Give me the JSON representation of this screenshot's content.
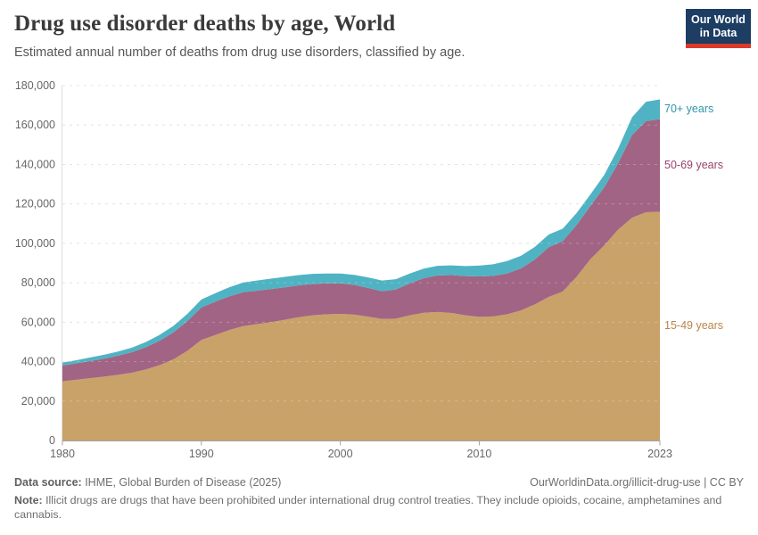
{
  "header": {
    "title": "Drug use disorder deaths by age, World",
    "subtitle": "Estimated annual number of deaths from drug use disorders, classified by age."
  },
  "logo": {
    "line1": "Our World",
    "line2": "in Data",
    "bg_color": "#1D3D63",
    "accent_color": "#D93A2B"
  },
  "footer": {
    "datasource_label": "Data source:",
    "datasource_value": " IHME, Global Burden of Disease (2025)",
    "credit": "OurWorldinData.org/illicit-drug-use | CC BY",
    "note_label": "Note:",
    "note_text": " Illicit drugs are drugs that have been prohibited under international drug control treaties. They include opioids, cocaine, amphetamines and cannabis."
  },
  "chart_data": {
    "type": "area",
    "stacked": true,
    "title": "Drug use disorder deaths by age, World",
    "xlabel": "",
    "ylabel": "",
    "xlim": [
      1980,
      2023
    ],
    "ylim": [
      0,
      180000
    ],
    "grid": "dashed-horizontal",
    "legend_position": "right-inline",
    "x_ticks": [
      1980,
      1990,
      2000,
      2010,
      2023
    ],
    "y_ticks": [
      0,
      20000,
      40000,
      60000,
      80000,
      100000,
      120000,
      140000,
      160000,
      180000
    ],
    "y_tick_labels": [
      "0",
      "20,000",
      "40,000",
      "60,000",
      "80,000",
      "100,000",
      "120,000",
      "140,000",
      "160,000",
      "180,000"
    ],
    "years": [
      1980,
      1981,
      1982,
      1983,
      1984,
      1985,
      1986,
      1987,
      1988,
      1989,
      1990,
      1991,
      1992,
      1993,
      1994,
      1995,
      1996,
      1997,
      1998,
      1999,
      2000,
      2001,
      2002,
      2003,
      2004,
      2005,
      2006,
      2007,
      2008,
      2009,
      2010,
      2011,
      2012,
      2013,
      2014,
      2015,
      2016,
      2017,
      2018,
      2019,
      2020,
      2021,
      2022,
      2023
    ],
    "series": [
      {
        "name": "15-49 years",
        "color": "#C9A269",
        "label_color": "#B9854A",
        "values": [
          30000,
          30800,
          31600,
          32400,
          33300,
          34400,
          36000,
          38200,
          41200,
          45500,
          51000,
          53500,
          56000,
          58000,
          59000,
          60000,
          61200,
          62500,
          63500,
          64000,
          64200,
          63800,
          62800,
          61600,
          61800,
          63500,
          64800,
          65200,
          64700,
          63500,
          62700,
          62900,
          64000,
          66000,
          69000,
          72800,
          75500,
          83000,
          92000,
          99000,
          107000,
          113000,
          115800,
          116000
        ]
      },
      {
        "name": "50-69 years",
        "color": "#A26484",
        "label_color": "#99416D",
        "values": [
          8000,
          8300,
          8700,
          9100,
          9700,
          10400,
          11300,
          12400,
          13700,
          15100,
          16500,
          16900,
          17100,
          17200,
          17000,
          16800,
          16500,
          16200,
          15900,
          15700,
          15500,
          15100,
          14600,
          14100,
          14800,
          16200,
          17500,
          18500,
          19200,
          19900,
          20500,
          20600,
          20700,
          21300,
          22800,
          25200,
          25600,
          26300,
          27000,
          29500,
          33700,
          42000,
          46200,
          47000
        ]
      },
      {
        "name": "70+ years",
        "color": "#4FB3C3",
        "label_color": "#2E96A8",
        "values": [
          1500,
          1600,
          1800,
          2000,
          2100,
          2300,
          2600,
          3000,
          3300,
          3700,
          4000,
          4300,
          4600,
          4900,
          5100,
          5300,
          5300,
          5200,
          5100,
          5000,
          5000,
          5100,
          5300,
          5400,
          5200,
          5000,
          4900,
          4900,
          4900,
          5100,
          5500,
          5900,
          6300,
          6400,
          6400,
          6500,
          6300,
          6000,
          5800,
          6300,
          7500,
          9000,
          9800,
          10000
        ]
      }
    ]
  }
}
